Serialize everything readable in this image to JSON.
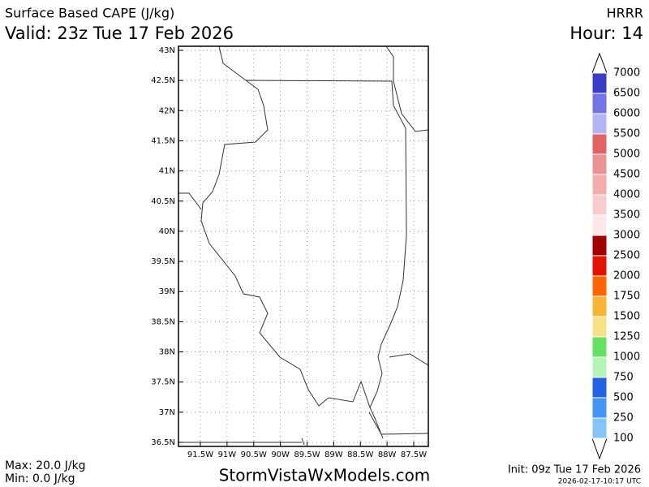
{
  "header": {
    "title": "Surface Based CAPE (J/kg)",
    "valid": "Valid: 23z Tue 17 Feb 2026",
    "model": "HRRR",
    "hour": "Hour: 14"
  },
  "map": {
    "lat_labels": [
      "43N",
      "42.5N",
      "42N",
      "41.5N",
      "41N",
      "40.5N",
      "40N",
      "39.5N",
      "39N",
      "38.5N",
      "38N",
      "37.5N",
      "37N",
      "36.5N"
    ],
    "lon_labels": [
      "91.5W",
      "91W",
      "90.5W",
      "90W",
      "89.5W",
      "89W",
      "88.5W",
      "88W",
      "87.5W"
    ]
  },
  "colorbar": {
    "labels": [
      "7000",
      "6500",
      "6000",
      "5500",
      "5000",
      "4500",
      "4000",
      "3500",
      "3000",
      "2500",
      "2000",
      "1750",
      "1500",
      "1250",
      "1000",
      "750",
      "500",
      "250",
      "100"
    ],
    "colors": [
      "#3c3cc4",
      "#7474e4",
      "#b4b4f4",
      "#e06464",
      "#e89494",
      "#f4acac",
      "#f8cccc",
      "#fce8e8",
      "#a00000",
      "#e01400",
      "#ff6400",
      "#f8b434",
      "#f8e084",
      "#64e064",
      "#b4f4b4",
      "#2464e4",
      "#4494f4",
      "#84c4f8"
    ]
  },
  "footer": {
    "max": "Max: 20.0 J/kg",
    "min": "Min: 0.0 J/kg",
    "site": "StormVistaWxModels.com",
    "init": "Init: 09z Tue 17 Feb 2026",
    "stamp": "2026-02-17-10:17 UTC"
  }
}
